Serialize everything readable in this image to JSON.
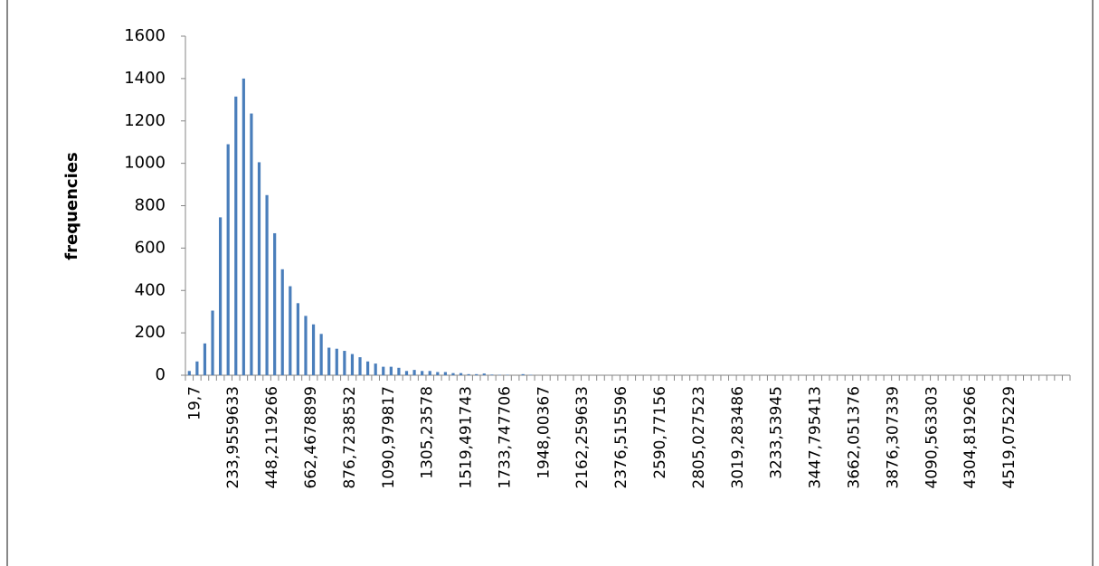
{
  "chart_data": {
    "type": "bar",
    "y_label": "frequencies",
    "categories": [
      "19,7",
      null,
      null,
      null,
      null,
      "233,9559633",
      null,
      null,
      null,
      null,
      "448,2119266",
      null,
      null,
      null,
      null,
      "662,4678899",
      null,
      null,
      null,
      null,
      "876,7238532",
      null,
      null,
      null,
      null,
      "1090,979817",
      null,
      null,
      null,
      null,
      "1305,23578",
      null,
      null,
      null,
      null,
      "1519,491743",
      null,
      null,
      null,
      null,
      "1733,747706",
      null,
      null,
      null,
      null,
      "1948,00367",
      null,
      null,
      null,
      null,
      "2162,259633",
      null,
      null,
      null,
      null,
      "2376,515596",
      null,
      null,
      null,
      null,
      "2590,77156",
      null,
      null,
      null,
      null,
      "2805,027523",
      null,
      null,
      null,
      null,
      "3019,283486",
      null,
      null,
      null,
      null,
      "3233,53945",
      null,
      null,
      null,
      null,
      "3447,795413",
      null,
      null,
      null,
      null,
      "3662,051376",
      null,
      null,
      null,
      null,
      "3876,307339",
      null,
      null,
      null,
      null,
      "4090,563303",
      null,
      null,
      null,
      null,
      "4304,819266",
      null,
      null,
      null,
      null,
      "4519,075229",
      null,
      null,
      null,
      null,
      null,
      null,
      null,
      null
    ],
    "values": [
      20,
      65,
      150,
      305,
      745,
      1090,
      1315,
      1400,
      1235,
      1005,
      850,
      670,
      500,
      420,
      340,
      280,
      240,
      195,
      130,
      125,
      115,
      100,
      85,
      65,
      55,
      40,
      40,
      35,
      20,
      25,
      20,
      20,
      15,
      15,
      10,
      10,
      5,
      5,
      8,
      3,
      2,
      2,
      0,
      5,
      2,
      0,
      0,
      0,
      0,
      0,
      0,
      0,
      0,
      0,
      0,
      0,
      0,
      0,
      0,
      0,
      0,
      0,
      0,
      0,
      0,
      0,
      0,
      0,
      0,
      0,
      0,
      0,
      0,
      0,
      0,
      0,
      0,
      0,
      0,
      0,
      0,
      0,
      0,
      0,
      0,
      0,
      0,
      0,
      0,
      0,
      0,
      0,
      0,
      0,
      0,
      0,
      0,
      0,
      0,
      0,
      0,
      0,
      0,
      0,
      0,
      0,
      0,
      0,
      0,
      0,
      0,
      0,
      0,
      0
    ],
    "color": "#4a7ebb",
    "ylim": [
      0,
      1600
    ],
    "yticks": [
      0,
      200,
      400,
      600,
      800,
      1000,
      1200,
      1400,
      1600
    ]
  }
}
